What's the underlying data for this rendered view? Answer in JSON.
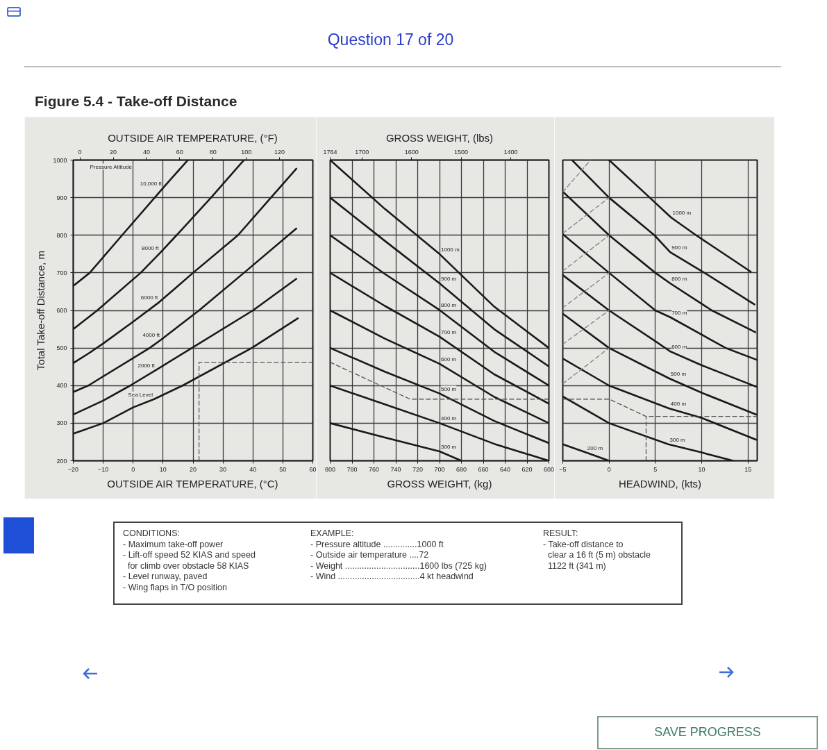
{
  "chart_data": [
    {
      "type": "other",
      "title": "Question 17 of 20"
    },
    {
      "type": "line",
      "title": "Figure 5.4 - Take-off Distance",
      "xlabel": "OUTSIDE AIR TEMPERATURE, (°C)",
      "x2label": "OUTSIDE AIR TEMPERATURE, (°F)",
      "ylabel": "Total Take-off Distance, m",
      "xlim": [
        -20,
        60
      ],
      "xticks": [
        -20,
        -10,
        0,
        10,
        20,
        30,
        40,
        50,
        60
      ],
      "x2lim": [
        -4,
        140
      ],
      "x2ticks": [
        0,
        20,
        40,
        60,
        80,
        100,
        120
      ],
      "ylim": [
        200,
        1000
      ],
      "yticks": [
        200,
        300,
        400,
        500,
        600,
        700,
        800,
        900,
        1000
      ],
      "grid": true,
      "line_style": "solid",
      "annotations": [
        "Pressure Altitude"
      ],
      "series": [
        {
          "name": "10,000 ft",
          "color": "#1a1a1a",
          "x": [
            -20,
            -14.5,
            -3.7,
            10,
            14,
            18.3
          ],
          "values": [
            665,
            700,
            800,
            926,
            962,
            1000
          ]
        },
        {
          "name": "8000 ft",
          "color": "#1a1a1a",
          "x": [
            -20,
            -12,
            2.5,
            9,
            14.5,
            26,
            37
          ],
          "values": [
            550,
            600,
            700,
            753,
            800,
            900,
            1000
          ]
        },
        {
          "name": "6000 ft",
          "color": "#1a1a1a",
          "x": [
            -20,
            -15,
            -10,
            0,
            8.7,
            20,
            35,
            46,
            54.5
          ],
          "values": [
            460,
            485,
            512,
            570,
            622,
            700,
            800,
            900,
            977
          ]
        },
        {
          "name": "4000 ft",
          "color": "#1a1a1a",
          "x": [
            -20,
            -15,
            5.5,
            9.3,
            22,
            37,
            54.5
          ],
          "values": [
            383,
            400,
            500,
            522,
            600,
            700,
            818
          ]
        },
        {
          "name": "2000 ft",
          "color": "#1a1a1a",
          "x": [
            -20,
            -10,
            -1,
            7.7,
            19.6,
            40,
            54.5
          ],
          "values": [
            323,
            360,
            400,
            442,
            500,
            600,
            684
          ]
        },
        {
          "name": "Sea Level",
          "color": "#1a1a1a",
          "x": [
            -20,
            -10,
            0,
            7,
            16.5,
            39.6,
            55
          ],
          "values": [
            272,
            300,
            342,
            364,
            400,
            500,
            579
          ]
        },
        {
          "color": "#555555",
          "line_style": "dashed",
          "x": [
            22,
            22,
            60
          ],
          "values": [
            200,
            462,
            462
          ]
        }
      ]
    },
    {
      "type": "line",
      "xlabel": "GROSS WEIGHT, (kg)",
      "x2label": "GROSS WEIGHT, (lbs)",
      "xlim": [
        800,
        600
      ],
      "xticks": [
        800,
        780,
        760,
        740,
        720,
        700,
        680,
        660,
        640,
        620,
        600
      ],
      "x2lim": [
        1764,
        1323
      ],
      "x2ticks": [
        1764,
        1700,
        1600,
        1500,
        1400
      ],
      "ylim": [
        200,
        1000
      ],
      "yticks": [
        200,
        300,
        400,
        500,
        600,
        700,
        800,
        900,
        1000
      ],
      "tick_labels": "x",
      "grid": true,
      "line_style": "solid",
      "series": [
        {
          "name": "1000 m",
          "color": "#1a1a1a",
          "x": [
            800,
            750,
            700,
            650,
            600
          ],
          "values": [
            1000,
            870,
            750,
            610,
            500
          ]
        },
        {
          "name": "900 m",
          "color": "#1a1a1a",
          "x": [
            800,
            750,
            700,
            650,
            600
          ],
          "values": [
            900,
            785,
            672,
            550,
            451
          ]
        },
        {
          "name": "800 m",
          "color": "#1a1a1a",
          "x": [
            800,
            750,
            700,
            650,
            600
          ],
          "values": [
            800,
            697,
            601,
            490,
            400
          ]
        },
        {
          "name": "700 m",
          "color": "#1a1a1a",
          "x": [
            800,
            750,
            700,
            650,
            600
          ],
          "values": [
            700,
            612,
            530,
            430,
            352
          ]
        },
        {
          "name": "600 m",
          "color": "#1a1a1a",
          "x": [
            800,
            750,
            700,
            650,
            600
          ],
          "values": [
            600,
            525,
            458,
            370,
            300
          ]
        },
        {
          "name": "500 m",
          "color": "#1a1a1a",
          "x": [
            800,
            750,
            700,
            650,
            600
          ],
          "values": [
            500,
            437,
            379,
            306,
            247
          ]
        },
        {
          "name": "400 m",
          "color": "#1a1a1a",
          "x": [
            800,
            750,
            700,
            650,
            600
          ],
          "values": [
            400,
            350,
            300,
            245,
            200
          ]
        },
        {
          "name": "300 m",
          "color": "#1a1a1a",
          "x": [
            800,
            750,
            700,
            680
          ],
          "values": [
            300,
            262,
            225,
            200
          ]
        },
        {
          "color": "#555555",
          "line_style": "dashed",
          "x": [
            800,
            727,
            600
          ],
          "values": [
            462,
            364,
            364
          ]
        }
      ]
    },
    {
      "type": "line",
      "xlabel": "HEADWIND, (kts)",
      "xlim": [
        -5,
        16
      ],
      "xticks": [
        -5,
        0,
        5,
        10,
        15
      ],
      "ylim": [
        200,
        1000
      ],
      "yticks": [
        200,
        300,
        400,
        500,
        600,
        700,
        800,
        900,
        1000
      ],
      "tick_labels": "x",
      "grid": true,
      "line_style": "solid",
      "series": [
        {
          "name": "1000 m",
          "color": "#1a1a1a",
          "x": [
            0,
            4.4,
            6.7,
            9.4,
            15.3
          ],
          "values": [
            1000,
            900,
            847,
            800,
            703
          ]
        },
        {
          "name": "900 m",
          "color": "#1a1a1a",
          "x": [
            -4,
            0,
            4.9,
            6.6,
            10.3,
            15.7
          ],
          "values": [
            1000,
            900,
            800,
            755,
            700,
            616
          ]
        },
        {
          "name": "800 m",
          "color": "#1a1a1a",
          "x": [
            -5,
            0,
            5,
            6.6,
            11.1,
            15.8
          ],
          "values": [
            916,
            800,
            700,
            672,
            600,
            542
          ]
        },
        {
          "name": "700 m",
          "color": "#1a1a1a",
          "x": [
            -5,
            0,
            5,
            6.6,
            12.6,
            15.9
          ],
          "values": [
            803,
            700,
            600,
            582,
            500,
            469
          ]
        },
        {
          "name": "600 m",
          "color": "#1a1a1a",
          "x": [
            -5,
            0,
            5,
            6.6,
            10,
            15.9
          ],
          "values": [
            694,
            600,
            518,
            491,
            454,
            397
          ]
        },
        {
          "name": "500 m",
          "color": "#1a1a1a",
          "x": [
            -5,
            0,
            6.5,
            10,
            15.9
          ],
          "values": [
            591,
            500,
            419,
            381,
            323
          ]
        },
        {
          "name": "400 m",
          "color": "#1a1a1a",
          "x": [
            -5,
            0,
            6.5,
            10,
            15.9
          ],
          "values": [
            472,
            400,
            339,
            314,
            256
          ]
        },
        {
          "name": "300 m",
          "color": "#1a1a1a",
          "x": [
            -5,
            0,
            6.4,
            10,
            13.4
          ],
          "values": [
            371,
            300,
            244,
            222,
            200
          ]
        },
        {
          "name": "200 m",
          "color": "#1a1a1a",
          "x": [
            -5,
            -2.5,
            0
          ],
          "values": [
            244,
            222,
            200
          ]
        },
        {
          "color": "#808080",
          "line_style": "dashed",
          "x": [
            -5,
            -2
          ],
          "values": [
            915,
            1000
          ]
        },
        {
          "color": "#808080",
          "line_style": "dashed",
          "x": [
            -5,
            0
          ],
          "values": [
            805,
            900
          ]
        },
        {
          "color": "#808080",
          "line_style": "dashed",
          "x": [
            -5,
            0
          ],
          "values": [
            705,
            800
          ]
        },
        {
          "color": "#808080",
          "line_style": "dashed",
          "x": [
            -5,
            0
          ],
          "values": [
            607,
            700
          ]
        },
        {
          "color": "#808080",
          "line_style": "dashed",
          "x": [
            -5,
            0
          ],
          "values": [
            510,
            600
          ]
        },
        {
          "color": "#808080",
          "line_style": "dashed",
          "x": [
            -5,
            0
          ],
          "values": [
            405,
            500
          ]
        },
        {
          "color": "#555555",
          "line_style": "dashed",
          "x": [
            -5,
            0,
            4,
            16
          ],
          "values": [
            364,
            364,
            318,
            318
          ]
        },
        {
          "color": "#555555",
          "line_style": "dashed",
          "x": [
            4,
            4
          ],
          "values": [
            200,
            318
          ]
        }
      ]
    },
    {
      "type": "other",
      "annotations": [
        "CONDITIONS:\n- Maximum take-off power\n- Lift-off speed 52 KIAS and speed\n  for climb over obstacle 58 KIAS\n- Level runway, paved\n- Wing flaps in T/O position",
        "EXAMPLE:\n- Pressure altitude ..............1000 ft\n- Outside air temperature ....72\n- Weight ...............................1600 lbs (725 kg)\n- Wind ..................................4 kt headwind",
        "RESULT:\n- Take-off distance to\n  clear a 16 ft (5 m) obstacle\n  1122 ft (341 m)"
      ]
    },
    {
      "type": "other",
      "annotations": [
        "SAVE PROGRESS"
      ]
    }
  ]
}
